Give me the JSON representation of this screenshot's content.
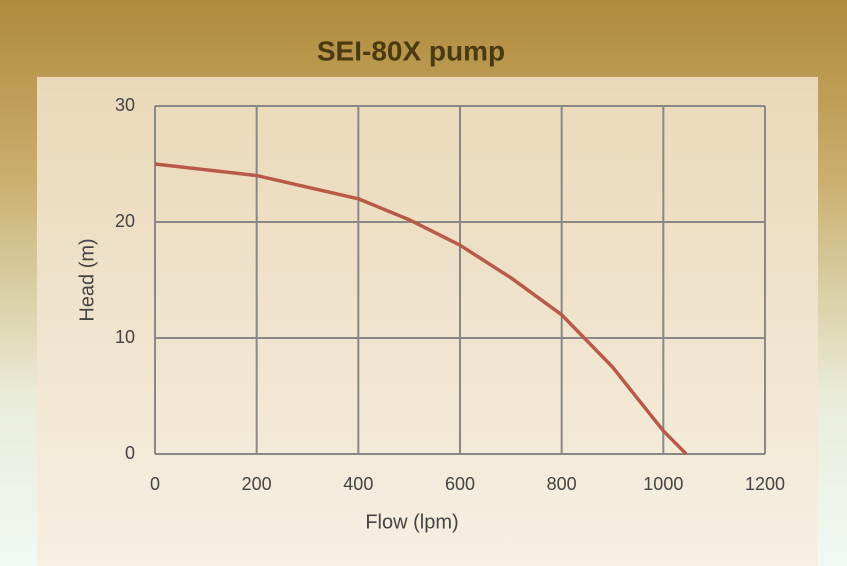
{
  "chart_data": {
    "type": "line",
    "title": "SEI-80X pump",
    "x_label": "Flow (lpm)",
    "y_label": "Head (m)",
    "x": [
      0,
      200,
      400,
      500,
      600,
      700,
      800,
      900,
      1000,
      1045
    ],
    "values": [
      25,
      24,
      22,
      20.2,
      18,
      15.2,
      12,
      7.5,
      2,
      0
    ],
    "color": "#b85a48",
    "xlim": [
      0,
      1200
    ],
    "xticks": [
      0,
      200,
      400,
      600,
      800,
      1000,
      1200
    ],
    "ylim": [
      0,
      30
    ],
    "yticks": [
      0,
      10,
      20,
      30
    ],
    "grid": true
  }
}
